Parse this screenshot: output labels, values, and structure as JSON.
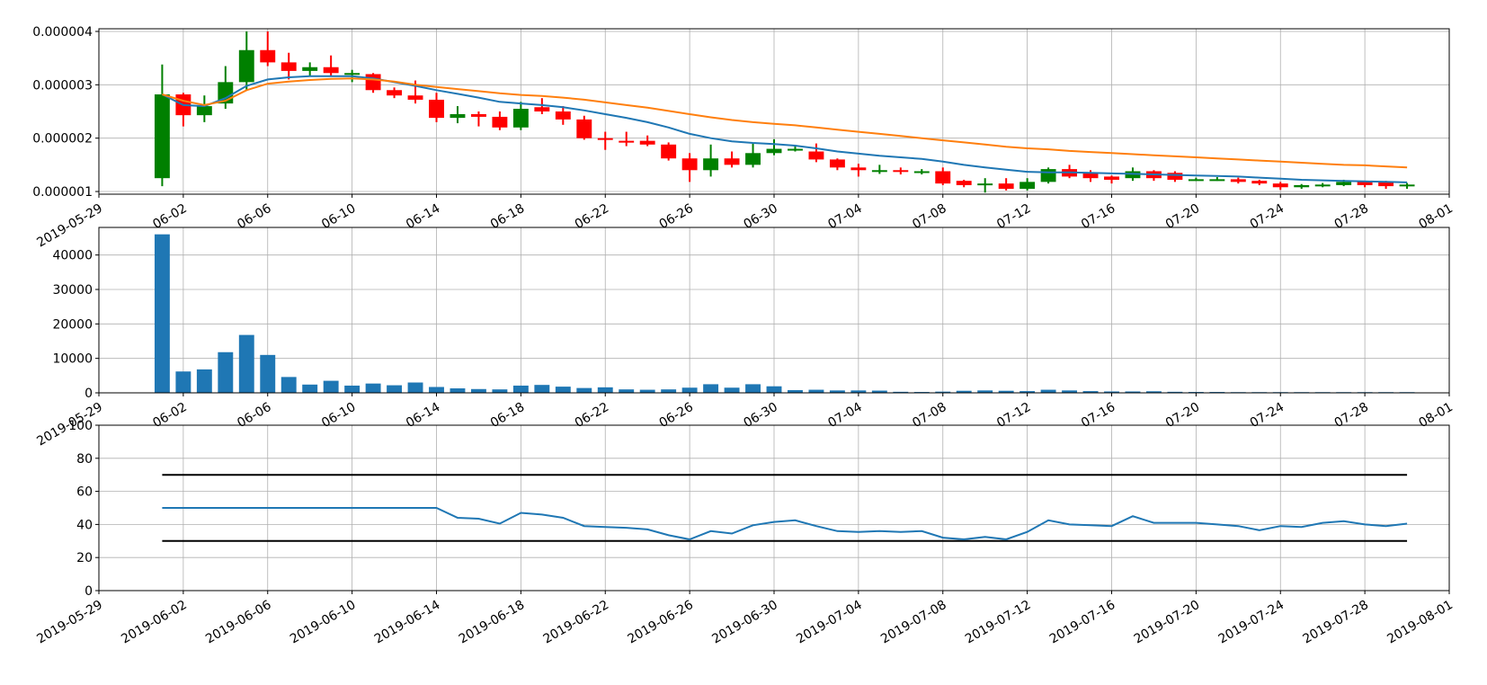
{
  "chart_data": [
    {
      "type": "candlestick",
      "title": "",
      "xlim": [
        "2019-05-29",
        "2019-08-01"
      ],
      "ylim": [
        9.5e-07,
        4.05e-06
      ],
      "x_tick_labels": [
        "2019-05-29",
        "06-02",
        "06-06",
        "06-10",
        "06-14",
        "06-18",
        "06-22",
        "06-26",
        "06-30",
        "07-04",
        "07-08",
        "07-12",
        "07-16",
        "07-20",
        "07-24",
        "07-28",
        "08-01"
      ],
      "y_ticks": [
        1e-06,
        2e-06,
        3e-06,
        4e-06
      ],
      "y_tick_labels": [
        "0.000001",
        "0.000002",
        "0.000003",
        "0.000004"
      ],
      "grid": true,
      "up_color": "#008000",
      "down_color": "#ff0000",
      "dates": [
        "2019-06-01",
        "2019-06-02",
        "2019-06-03",
        "2019-06-04",
        "2019-06-05",
        "2019-06-06",
        "2019-06-07",
        "2019-06-08",
        "2019-06-09",
        "2019-06-10",
        "2019-06-11",
        "2019-06-12",
        "2019-06-13",
        "2019-06-14",
        "2019-06-15",
        "2019-06-16",
        "2019-06-17",
        "2019-06-18",
        "2019-06-19",
        "2019-06-20",
        "2019-06-21",
        "2019-06-22",
        "2019-06-23",
        "2019-06-24",
        "2019-06-25",
        "2019-06-26",
        "2019-06-27",
        "2019-06-28",
        "2019-06-29",
        "2019-06-30",
        "2019-07-01",
        "2019-07-02",
        "2019-07-03",
        "2019-07-04",
        "2019-07-05",
        "2019-07-06",
        "2019-07-07",
        "2019-07-08",
        "2019-07-09",
        "2019-07-10",
        "2019-07-11",
        "2019-07-12",
        "2019-07-13",
        "2019-07-14",
        "2019-07-15",
        "2019-07-16",
        "2019-07-17",
        "2019-07-18",
        "2019-07-19",
        "2019-07-20",
        "2019-07-21",
        "2019-07-22",
        "2019-07-23",
        "2019-07-24",
        "2019-07-25",
        "2019-07-26",
        "2019-07-27",
        "2019-07-28",
        "2019-07-29",
        "2019-07-30"
      ],
      "open": [
        1.25,
        2.82,
        2.43,
        2.65,
        3.05,
        3.65,
        3.42,
        3.26,
        3.33,
        3.22,
        3.2,
        2.9,
        2.8,
        2.72,
        2.38,
        2.45,
        2.4,
        2.2,
        2.58,
        2.5,
        2.35,
        2.0,
        1.95,
        1.95,
        1.88,
        1.62,
        1.4,
        1.62,
        1.5,
        1.72,
        1.8,
        1.75,
        1.6,
        1.45,
        1.4,
        1.4,
        1.38,
        1.38,
        1.2,
        1.15,
        1.15,
        1.05,
        1.18,
        1.42,
        1.35,
        1.28,
        1.25,
        1.38,
        1.35,
        1.22,
        1.23,
        1.23,
        1.2,
        1.15,
        1.08,
        1.13,
        1.12,
        1.18,
        1.17,
        1.1
      ],
      "close": [
        2.82,
        2.43,
        2.6,
        3.05,
        3.65,
        3.42,
        3.26,
        3.33,
        3.22,
        3.22,
        2.9,
        2.8,
        2.72,
        2.38,
        2.45,
        2.4,
        2.2,
        2.55,
        2.5,
        2.35,
        2.0,
        1.97,
        1.93,
        1.88,
        1.62,
        1.4,
        1.62,
        1.5,
        1.72,
        1.8,
        1.8,
        1.6,
        1.45,
        1.4,
        1.4,
        1.38,
        1.38,
        1.15,
        1.12,
        1.15,
        1.05,
        1.18,
        1.42,
        1.28,
        1.25,
        1.22,
        1.38,
        1.25,
        1.22,
        1.23,
        1.23,
        1.18,
        1.15,
        1.08,
        1.12,
        1.13,
        1.18,
        1.12,
        1.1,
        1.13
      ],
      "high": [
        3.38,
        2.85,
        2.8,
        3.35,
        4.0,
        4.0,
        3.6,
        3.42,
        3.55,
        3.28,
        3.22,
        2.95,
        3.08,
        2.85,
        2.6,
        2.5,
        2.5,
        2.68,
        2.75,
        2.6,
        2.42,
        2.12,
        2.12,
        2.05,
        1.92,
        1.72,
        1.88,
        1.75,
        1.9,
        1.98,
        1.85,
        1.9,
        1.62,
        1.52,
        1.5,
        1.45,
        1.42,
        1.45,
        1.22,
        1.25,
        1.25,
        1.25,
        1.45,
        1.5,
        1.4,
        1.3,
        1.45,
        1.4,
        1.38,
        1.26,
        1.27,
        1.26,
        1.22,
        1.18,
        1.14,
        1.16,
        1.22,
        1.2,
        1.2,
        1.16
      ],
      "low": [
        1.1,
        2.22,
        2.3,
        2.55,
        2.9,
        3.35,
        3.1,
        3.15,
        3.15,
        3.05,
        2.85,
        2.75,
        2.65,
        2.3,
        2.28,
        2.22,
        2.15,
        2.15,
        2.45,
        2.25,
        1.97,
        1.78,
        1.85,
        1.85,
        1.58,
        1.18,
        1.28,
        1.45,
        1.45,
        1.68,
        1.75,
        1.55,
        1.4,
        1.28,
        1.33,
        1.32,
        1.32,
        1.12,
        1.08,
        0.98,
        1.02,
        1.02,
        1.15,
        1.25,
        1.18,
        1.15,
        1.2,
        1.2,
        1.18,
        1.2,
        1.2,
        1.15,
        1.12,
        1.03,
        1.05,
        1.08,
        1.1,
        1.08,
        1.05,
        1.05
      ],
      "price_scale": 1e-06,
      "series": [
        {
          "color": "#1f77b4",
          "values": [
            2.82,
            2.62,
            2.6,
            2.75,
            2.98,
            3.1,
            3.14,
            3.16,
            3.16,
            3.16,
            3.12,
            3.05,
            2.98,
            2.9,
            2.83,
            2.76,
            2.68,
            2.65,
            2.62,
            2.58,
            2.52,
            2.45,
            2.38,
            2.3,
            2.2,
            2.08,
            2.0,
            1.94,
            1.91,
            1.89,
            1.86,
            1.81,
            1.75,
            1.71,
            1.67,
            1.64,
            1.61,
            1.56,
            1.5,
            1.45,
            1.41,
            1.37,
            1.36,
            1.36,
            1.35,
            1.34,
            1.33,
            1.32,
            1.31,
            1.3,
            1.29,
            1.28,
            1.26,
            1.24,
            1.22,
            1.21,
            1.2,
            1.19,
            1.18,
            1.17
          ]
        },
        {
          "color": "#ff7f0e",
          "values": [
            2.82,
            2.7,
            2.62,
            2.7,
            2.9,
            3.02,
            3.06,
            3.09,
            3.11,
            3.12,
            3.1,
            3.06,
            3.0,
            2.96,
            2.92,
            2.88,
            2.84,
            2.81,
            2.79,
            2.76,
            2.72,
            2.67,
            2.62,
            2.57,
            2.51,
            2.45,
            2.39,
            2.34,
            2.3,
            2.27,
            2.24,
            2.2,
            2.16,
            2.12,
            2.08,
            2.04,
            2.0,
            1.96,
            1.92,
            1.88,
            1.84,
            1.81,
            1.79,
            1.76,
            1.74,
            1.72,
            1.7,
            1.68,
            1.66,
            1.64,
            1.62,
            1.6,
            1.58,
            1.56,
            1.54,
            1.52,
            1.5,
            1.49,
            1.47,
            1.45
          ]
        }
      ]
    },
    {
      "type": "bar",
      "title": "",
      "xlim": [
        "2019-05-29",
        "2019-08-01"
      ],
      "ylim": [
        0,
        48000
      ],
      "x_tick_labels": [
        "2019-05-29",
        "06-02",
        "06-06",
        "06-10",
        "06-14",
        "06-18",
        "06-22",
        "06-26",
        "06-30",
        "07-04",
        "07-08",
        "07-12",
        "07-16",
        "07-20",
        "07-24",
        "07-28",
        "08-01"
      ],
      "y_ticks": [
        0,
        10000,
        20000,
        30000,
        40000
      ],
      "y_tick_labels": [
        "0",
        "10000",
        "20000",
        "30000",
        "40000"
      ],
      "grid": true,
      "color": "#1f77b4",
      "dates": [
        "2019-06-01",
        "2019-06-02",
        "2019-06-03",
        "2019-06-04",
        "2019-06-05",
        "2019-06-06",
        "2019-06-07",
        "2019-06-08",
        "2019-06-09",
        "2019-06-10",
        "2019-06-11",
        "2019-06-12",
        "2019-06-13",
        "2019-06-14",
        "2019-06-15",
        "2019-06-16",
        "2019-06-17",
        "2019-06-18",
        "2019-06-19",
        "2019-06-20",
        "2019-06-21",
        "2019-06-22",
        "2019-06-23",
        "2019-06-24",
        "2019-06-25",
        "2019-06-26",
        "2019-06-27",
        "2019-06-28",
        "2019-06-29",
        "2019-06-30",
        "2019-07-01",
        "2019-07-02",
        "2019-07-03",
        "2019-07-04",
        "2019-07-05",
        "2019-07-06",
        "2019-07-07",
        "2019-07-08",
        "2019-07-09",
        "2019-07-10",
        "2019-07-11",
        "2019-07-12",
        "2019-07-13",
        "2019-07-14",
        "2019-07-15",
        "2019-07-16",
        "2019-07-17",
        "2019-07-18",
        "2019-07-19",
        "2019-07-20",
        "2019-07-21",
        "2019-07-22",
        "2019-07-23",
        "2019-07-24",
        "2019-07-25",
        "2019-07-26",
        "2019-07-27",
        "2019-07-28",
        "2019-07-29",
        "2019-07-30"
      ],
      "values": [
        46000,
        6200,
        6800,
        11800,
        16800,
        11000,
        4600,
        2400,
        3500,
        2100,
        2700,
        2200,
        3000,
        1700,
        1300,
        1100,
        1000,
        2100,
        2300,
        1800,
        1400,
        1600,
        1000,
        900,
        1000,
        1500,
        2500,
        1500,
        2500,
        1900,
        800,
        900,
        700,
        700,
        650,
        300,
        250,
        350,
        600,
        700,
        600,
        500,
        900,
        700,
        500,
        400,
        400,
        450,
        300,
        250,
        250,
        200,
        200,
        200,
        200,
        200,
        200,
        200,
        200,
        200
      ]
    },
    {
      "type": "line",
      "title": "",
      "xlim": [
        "2019-05-29",
        "2019-08-01"
      ],
      "ylim": [
        0,
        100
      ],
      "x_tick_labels": [
        "2019-05-29",
        "2019-06-02",
        "2019-06-06",
        "2019-06-10",
        "2019-06-14",
        "2019-06-18",
        "2019-06-22",
        "2019-06-26",
        "2019-06-30",
        "2019-07-04",
        "2019-07-08",
        "2019-07-12",
        "2019-07-16",
        "2019-07-20",
        "2019-07-24",
        "2019-07-28",
        "2019-08-01"
      ],
      "y_ticks": [
        0,
        20,
        40,
        60,
        80,
        100
      ],
      "y_tick_labels": [
        "0",
        "20",
        "40",
        "60",
        "80",
        "100"
      ],
      "grid": true,
      "dates": [
        "2019-06-01",
        "2019-06-02",
        "2019-06-03",
        "2019-06-04",
        "2019-06-05",
        "2019-06-06",
        "2019-06-07",
        "2019-06-08",
        "2019-06-09",
        "2019-06-10",
        "2019-06-11",
        "2019-06-12",
        "2019-06-13",
        "2019-06-14",
        "2019-06-15",
        "2019-06-16",
        "2019-06-17",
        "2019-06-18",
        "2019-06-19",
        "2019-06-20",
        "2019-06-21",
        "2019-06-22",
        "2019-06-23",
        "2019-06-24",
        "2019-06-25",
        "2019-06-26",
        "2019-06-27",
        "2019-06-28",
        "2019-06-29",
        "2019-06-30",
        "2019-07-01",
        "2019-07-02",
        "2019-07-03",
        "2019-07-04",
        "2019-07-05",
        "2019-07-06",
        "2019-07-07",
        "2019-07-08",
        "2019-07-09",
        "2019-07-10",
        "2019-07-11",
        "2019-07-12",
        "2019-07-13",
        "2019-07-14",
        "2019-07-15",
        "2019-07-16",
        "2019-07-17",
        "2019-07-18",
        "2019-07-19",
        "2019-07-20",
        "2019-07-21",
        "2019-07-22",
        "2019-07-23",
        "2019-07-24",
        "2019-07-25",
        "2019-07-26",
        "2019-07-27",
        "2019-07-28",
        "2019-07-29",
        "2019-07-30"
      ],
      "series": [
        {
          "color": "#1f77b4",
          "values": [
            50,
            50,
            50,
            50,
            50,
            50,
            50,
            50,
            50,
            50,
            50,
            50,
            50,
            50,
            44,
            43.5,
            40.5,
            47,
            46,
            44,
            39,
            38.5,
            38,
            37,
            33.5,
            31,
            36,
            34.5,
            39.5,
            41.5,
            42.5,
            39,
            36,
            35.5,
            36,
            35.5,
            36,
            32,
            31,
            32.5,
            31,
            35.5,
            42.5,
            40,
            39.5,
            39,
            45,
            41,
            41,
            41,
            40,
            39,
            36.5,
            39,
            38.5,
            41,
            42,
            40,
            39,
            40.5
          ]
        }
      ],
      "hlines": [
        {
          "y": 70,
          "color": "#000000"
        },
        {
          "y": 30,
          "color": "#000000"
        }
      ]
    }
  ]
}
